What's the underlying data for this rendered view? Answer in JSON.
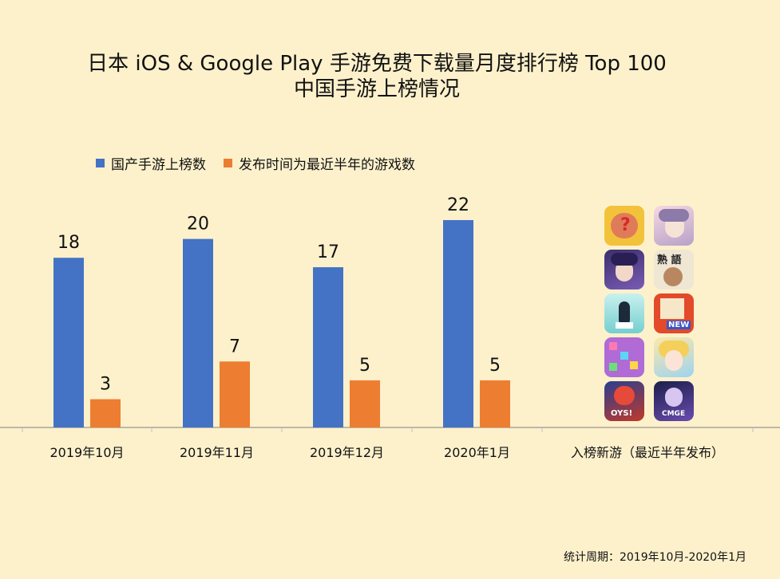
{
  "title_line1": "日本 iOS & Google Play 手游免费下载量月度排行榜 Top 100",
  "title_line2": "中国手游上榜情况",
  "footnote": "统计周期：2019年10月-2020年1月",
  "colors": {
    "series1": "#4472c4",
    "series2": "#ed7d31",
    "background": "#fdf1cc"
  },
  "chart_data": {
    "type": "bar",
    "categories": [
      "2019年10月",
      "2019年11月",
      "2019年12月",
      "2020年1月",
      "入榜新游（最近半年发布）"
    ],
    "series": [
      {
        "name": "国产手游上榜数",
        "values": [
          18,
          20,
          17,
          22,
          null
        ]
      },
      {
        "name": "发布时间为最近半年的游戏数",
        "values": [
          3,
          7,
          5,
          5,
          null
        ]
      }
    ],
    "data_labels": true,
    "legend": "top-left",
    "grid": false
  },
  "icons": [
    {
      "name": "brain-puzzle-icon",
      "text": "?"
    },
    {
      "name": "anime-girl-icon",
      "text": ""
    },
    {
      "name": "anime-character-icon",
      "text": ""
    },
    {
      "name": "idiom-puzzle-icon",
      "text": "熟 語"
    },
    {
      "name": "penguin-game-icon",
      "text": ""
    },
    {
      "name": "new-game-icon",
      "text": "NEW"
    },
    {
      "name": "number-puzzle-icon",
      "text": ""
    },
    {
      "name": "blonde-girl-icon",
      "text": ""
    },
    {
      "name": "oys-game-icon",
      "text": "OYS!"
    },
    {
      "name": "cmge-game-icon",
      "text": "CMGE"
    }
  ]
}
